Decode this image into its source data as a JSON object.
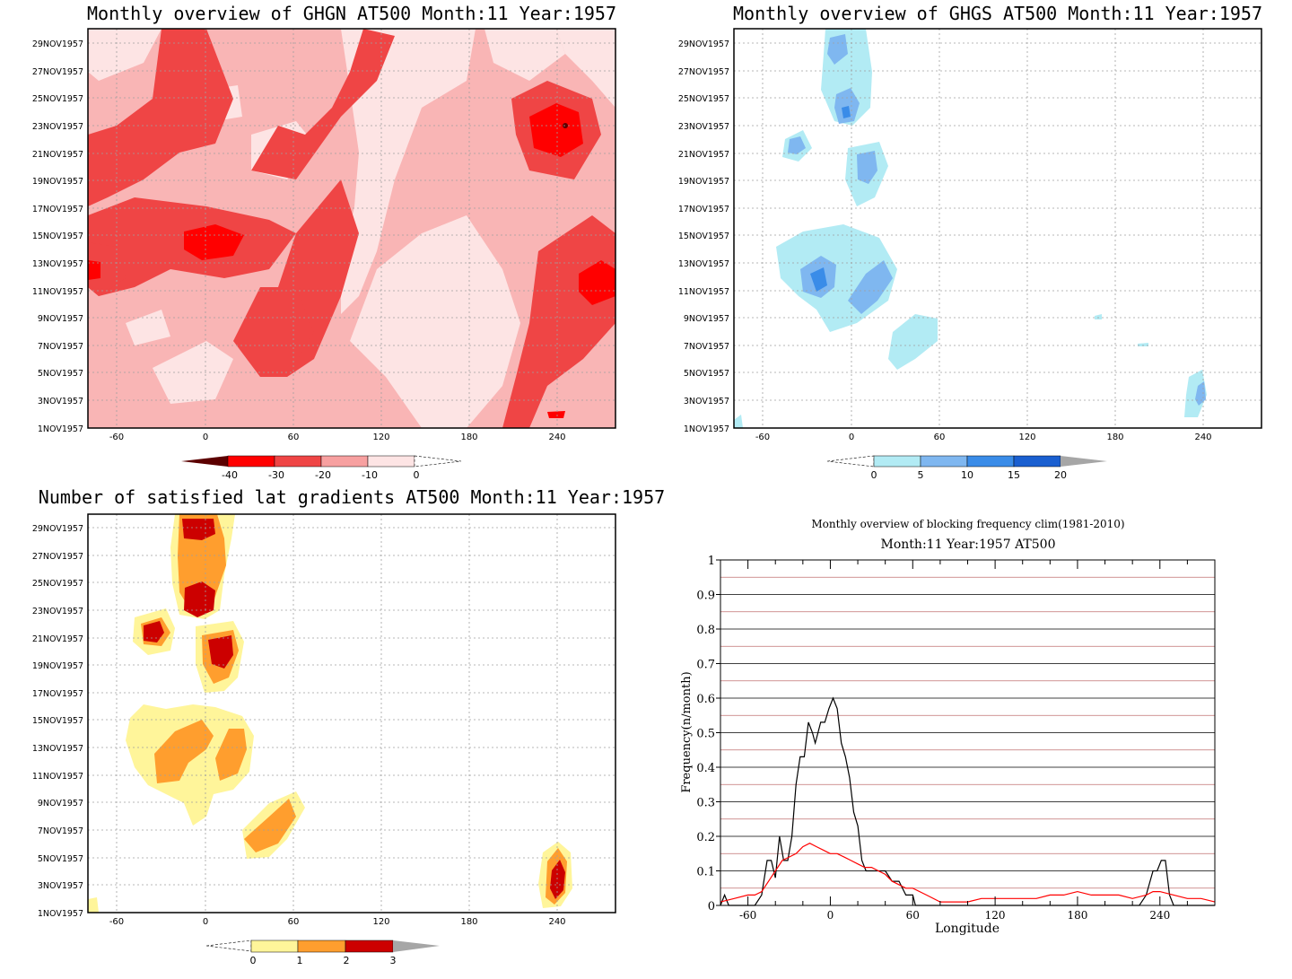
{
  "panels": {
    "ghgn": {
      "title": "Monthly overview of GHGN AT500 Month:11 Year:1957",
      "colorbar": {
        "labels": [
          "-40",
          "-30",
          "-20",
          "-10",
          "0"
        ],
        "colors": [
          "#5c0000",
          "#ff0000",
          "#ef4545",
          "#f7a0a0",
          "#fde4e4"
        ]
      },
      "background": "#f9b5b5"
    },
    "ghgs": {
      "title": "Monthly overview of GHGS AT500 Month:11 Year:1957",
      "colorbar": {
        "labels": [
          "0",
          "5",
          "10",
          "15",
          "20"
        ],
        "colors": [
          "#b2ebf4",
          "#7fb7f0",
          "#3a8ce8",
          "#1a5fd0",
          "#a6a6a6"
        ]
      }
    },
    "nsat": {
      "title": "Number of satisfied lat gradients AT500 Month:11 Year:1957",
      "colorbar": {
        "labels": [
          "0",
          "1",
          "2",
          "3"
        ],
        "colors": [
          "#fff59a",
          "#ff9e2e",
          "#cc0000",
          "#a6a6a6"
        ]
      }
    }
  },
  "y_ticks": [
    "1NOV1957",
    "3NOV1957",
    "5NOV1957",
    "7NOV1957",
    "9NOV1957",
    "11NOV1957",
    "13NOV1957",
    "15NOV1957",
    "17NOV1957",
    "19NOV1957",
    "21NOV1957",
    "23NOV1957",
    "25NOV1957",
    "27NOV1957",
    "29NOV1957"
  ],
  "x_ticks": [
    "-60",
    "0",
    "60",
    "120",
    "180",
    "240"
  ],
  "chart_data": [
    {
      "type": "heatmap",
      "title": "Monthly overview of GHGN AT500 Month:11 Year:1957",
      "x_ticks": [
        -60,
        0,
        60,
        120,
        180,
        240
      ],
      "y_range": [
        "1NOV1957",
        "30NOV1957"
      ],
      "legend_levels": [
        -40,
        -30,
        -20,
        -10,
        0
      ]
    },
    {
      "type": "heatmap",
      "title": "Monthly overview of GHGS AT500 Month:11 Year:1957",
      "x_ticks": [
        -60,
        0,
        60,
        120,
        180,
        240
      ],
      "y_range": [
        "1NOV1957",
        "30NOV1957"
      ],
      "legend_levels": [
        0,
        5,
        10,
        15,
        20
      ]
    },
    {
      "type": "heatmap",
      "title": "Number of satisfied lat gradients AT500 Month:11 Year:1957",
      "x_ticks": [
        -60,
        0,
        60,
        120,
        180,
        240
      ],
      "y_range": [
        "1NOV1957",
        "30NOV1957"
      ],
      "legend_levels": [
        0,
        1,
        2,
        3
      ]
    },
    {
      "type": "line",
      "title": "Monthly overview of blocking frequency clim(1981-2010)",
      "subtitle": "Month:11 Year:1957  AT500",
      "xlabel": "Longitude",
      "ylabel": "Frequency(n/month)",
      "xlim": [
        -80,
        280
      ],
      "ylim": [
        0,
        1
      ],
      "x_ticks": [
        -60,
        0,
        60,
        120,
        180,
        240
      ],
      "y_ticks": [
        "0",
        "0.1",
        "0.2",
        "0.3",
        "0.4",
        "0.5",
        "0.6",
        "0.7",
        "0.8",
        "0.9",
        "1"
      ],
      "grid": true,
      "series": [
        {
          "color": "#000000",
          "x": [
            -80,
            -77,
            -74,
            -70,
            -66,
            -60,
            -55,
            -50,
            -46,
            -43,
            -40,
            -37,
            -34,
            -31,
            -28,
            -25,
            -22,
            -19,
            -16,
            -13,
            -11,
            -9,
            -7,
            -4,
            -1,
            2,
            5,
            8,
            11,
            14,
            17,
            20,
            23,
            26,
            29,
            32,
            35,
            40,
            45,
            50,
            55,
            58,
            60,
            62,
            65,
            70,
            80,
            100,
            150,
            200,
            225,
            230,
            235,
            238,
            241,
            244,
            247,
            250,
            260,
            270,
            280
          ],
          "values": [
            0,
            0.03,
            0,
            0,
            0,
            0,
            0,
            0.03,
            0.13,
            0.13,
            0.08,
            0.2,
            0.13,
            0.13,
            0.2,
            0.35,
            0.43,
            0.43,
            0.53,
            0.5,
            0.47,
            0.5,
            0.53,
            0.53,
            0.57,
            0.6,
            0.57,
            0.47,
            0.43,
            0.37,
            0.27,
            0.23,
            0.13,
            0.1,
            0.1,
            0.1,
            0.1,
            0.1,
            0.07,
            0.07,
            0.03,
            0.03,
            0.03,
            0,
            0,
            0,
            0,
            0,
            0,
            0,
            0,
            0.03,
            0.1,
            0.1,
            0.13,
            0.13,
            0.03,
            0,
            0,
            0,
            0
          ]
        },
        {
          "color": "#ff0000",
          "x": [
            -80,
            -70,
            -60,
            -55,
            -50,
            -45,
            -40,
            -35,
            -30,
            -25,
            -20,
            -15,
            -10,
            -5,
            0,
            5,
            10,
            15,
            20,
            25,
            30,
            35,
            40,
            45,
            50,
            55,
            60,
            70,
            80,
            90,
            100,
            110,
            120,
            130,
            140,
            150,
            160,
            170,
            180,
            190,
            200,
            210,
            220,
            230,
            235,
            240,
            250,
            260,
            270,
            280
          ],
          "values": [
            0.01,
            0.02,
            0.03,
            0.03,
            0.04,
            0.07,
            0.1,
            0.13,
            0.14,
            0.15,
            0.17,
            0.18,
            0.17,
            0.16,
            0.15,
            0.15,
            0.14,
            0.13,
            0.12,
            0.11,
            0.11,
            0.1,
            0.09,
            0.07,
            0.06,
            0.05,
            0.05,
            0.03,
            0.01,
            0.01,
            0.01,
            0.02,
            0.02,
            0.02,
            0.02,
            0.02,
            0.03,
            0.03,
            0.04,
            0.03,
            0.03,
            0.03,
            0.02,
            0.03,
            0.04,
            0.04,
            0.03,
            0.02,
            0.02,
            0.01
          ]
        }
      ]
    }
  ]
}
